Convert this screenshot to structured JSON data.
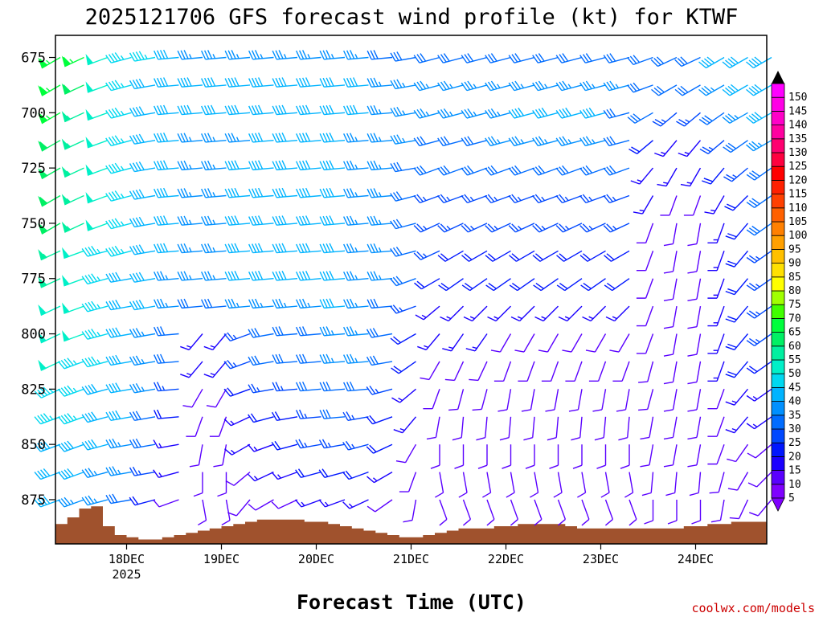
{
  "chart_data": {
    "type": "wind_barb_profile",
    "title": "2025121706 GFS forecast wind profile (kt) for KTWF",
    "xlabel": "Forecast Time (UTC)",
    "ylabel": "",
    "credit": "coolwx.com/models",
    "y_axis": {
      "unit": "mb",
      "range": [
        665,
        895
      ],
      "inverted": true,
      "ticks": [
        "675",
        "700",
        "725",
        "750",
        "775",
        "800",
        "825",
        "850",
        "875"
      ]
    },
    "x_axis": {
      "unit": "hours since 2025-12-17 06Z",
      "range": [
        0,
        180
      ],
      "ticks": [
        {
          "label": "18DEC",
          "sublabel": "2025",
          "hour": 18
        },
        {
          "label": "19DEC",
          "sublabel": "",
          "hour": 42
        },
        {
          "label": "20DEC",
          "sublabel": "",
          "hour": 66
        },
        {
          "label": "21DEC",
          "sublabel": "",
          "hour": 90
        },
        {
          "label": "22DEC",
          "sublabel": "",
          "hour": 114
        },
        {
          "label": "23DEC",
          "sublabel": "",
          "hour": 138
        },
        {
          "label": "24DEC",
          "sublabel": "",
          "hour": 162
        }
      ]
    },
    "colorbar": {
      "unit": "kt",
      "levels": [
        "5",
        "10",
        "15",
        "20",
        "25",
        "30",
        "35",
        "40",
        "45",
        "50",
        "55",
        "60",
        "65",
        "70",
        "75",
        "80",
        "85",
        "90",
        "95",
        "100",
        "105",
        "110",
        "115",
        "120",
        "125",
        "130",
        "135",
        "140",
        "145",
        "150"
      ],
      "colors": [
        "#7f00ff",
        "#5a00ff",
        "#1a00ff",
        "#0016ff",
        "#0048ff",
        "#006cff",
        "#0090ff",
        "#00b4ff",
        "#00d8f0",
        "#00f0c8",
        "#00f0a0",
        "#00f064",
        "#00ff3c",
        "#40ff00",
        "#a0ff00",
        "#ffff00",
        "#ffe000",
        "#ffc000",
        "#ffa000",
        "#ff8000",
        "#ff6000",
        "#ff4000",
        "#ff2000",
        "#ff0000",
        "#ff0040",
        "#ff0070",
        "#ff00a0",
        "#ff00c8",
        "#ff00e6",
        "#ff00ff"
      ]
    },
    "terrain_color": "#a0522d",
    "terrain_hours": [
      0,
      3,
      6,
      9,
      12,
      15,
      18,
      21,
      24,
      27,
      30,
      33,
      36,
      39,
      42,
      45,
      48,
      51,
      54,
      57,
      60,
      63,
      66,
      69,
      72,
      75,
      78,
      81,
      84,
      87,
      90,
      93,
      96,
      99,
      102,
      105,
      108,
      111,
      114,
      117,
      120,
      123,
      126,
      129,
      132,
      135,
      138,
      141,
      144,
      147,
      150,
      153,
      156,
      159,
      162,
      165,
      168,
      171,
      174,
      177,
      180
    ],
    "terrain_pressure_mb": [
      886,
      883,
      879,
      878,
      887,
      891,
      892,
      893,
      893,
      892,
      891,
      890,
      889,
      888,
      887,
      886,
      885,
      884,
      884,
      884,
      884,
      885,
      885,
      886,
      887,
      888,
      889,
      890,
      891,
      892,
      892,
      891,
      890,
      889,
      888,
      888,
      888,
      887,
      887,
      886,
      886,
      886,
      886,
      887,
      888,
      888,
      888,
      888,
      888,
      888,
      888,
      888,
      888,
      887,
      887,
      886,
      886,
      885,
      885,
      885,
      886
    ],
    "levels_mb": [
      675,
      687.5,
      700,
      712.5,
      725,
      737.5,
      750,
      762.5,
      775,
      787.5,
      800,
      812.5,
      825,
      837.5,
      850,
      862.5,
      875
    ],
    "times_hours": [
      0,
      6,
      12,
      18,
      24,
      30,
      36,
      42,
      48,
      54,
      60,
      66,
      72,
      78,
      84,
      90,
      96,
      102,
      108,
      114,
      120,
      126,
      132,
      138,
      144,
      150,
      156,
      162,
      168,
      174,
      180
    ],
    "wind_speed_kt": [
      [
        65,
        65,
        50,
        45,
        45,
        40,
        35,
        35,
        35,
        35,
        35,
        35,
        35,
        35,
        30,
        30,
        30,
        30,
        30,
        30,
        30,
        30,
        30,
        30,
        30,
        30,
        30,
        30,
        40,
        40,
        40
      ],
      [
        65,
        60,
        50,
        45,
        40,
        40,
        40,
        40,
        40,
        40,
        40,
        40,
        40,
        40,
        35,
        35,
        35,
        35,
        35,
        35,
        35,
        35,
        35,
        35,
        35,
        30,
        30,
        30,
        35,
        40,
        40
      ],
      [
        65,
        55,
        50,
        45,
        40,
        40,
        40,
        40,
        40,
        40,
        40,
        40,
        40,
        40,
        35,
        35,
        35,
        35,
        35,
        35,
        40,
        40,
        40,
        40,
        30,
        30,
        25,
        25,
        30,
        35,
        40
      ],
      [
        60,
        55,
        50,
        45,
        40,
        40,
        35,
        35,
        35,
        40,
        40,
        40,
        40,
        35,
        35,
        35,
        30,
        30,
        30,
        35,
        35,
        35,
        35,
        35,
        30,
        20,
        15,
        15,
        25,
        30,
        35
      ],
      [
        60,
        55,
        50,
        45,
        40,
        40,
        35,
        35,
        40,
        40,
        40,
        40,
        40,
        35,
        35,
        30,
        30,
        30,
        30,
        30,
        30,
        30,
        30,
        30,
        30,
        15,
        15,
        15,
        20,
        25,
        30
      ],
      [
        60,
        55,
        50,
        45,
        40,
        40,
        35,
        35,
        40,
        40,
        40,
        40,
        40,
        35,
        35,
        30,
        25,
        25,
        25,
        25,
        25,
        25,
        25,
        25,
        25,
        15,
        10,
        10,
        15,
        20,
        30
      ],
      [
        60,
        55,
        50,
        45,
        40,
        40,
        35,
        35,
        40,
        40,
        40,
        40,
        40,
        35,
        35,
        30,
        25,
        25,
        25,
        25,
        25,
        25,
        25,
        25,
        25,
        10,
        10,
        10,
        15,
        20,
        30
      ],
      [
        55,
        50,
        45,
        45,
        40,
        40,
        35,
        35,
        40,
        40,
        40,
        40,
        40,
        35,
        35,
        30,
        25,
        20,
        20,
        20,
        20,
        20,
        20,
        20,
        20,
        10,
        10,
        10,
        15,
        20,
        25
      ],
      [
        55,
        50,
        45,
        40,
        40,
        35,
        35,
        35,
        40,
        40,
        40,
        40,
        40,
        35,
        35,
        30,
        20,
        20,
        20,
        20,
        20,
        20,
        20,
        20,
        20,
        10,
        10,
        10,
        15,
        20,
        25
      ],
      [
        50,
        50,
        45,
        40,
        40,
        35,
        30,
        30,
        35,
        35,
        35,
        35,
        40,
        35,
        30,
        25,
        15,
        15,
        15,
        15,
        15,
        15,
        15,
        15,
        15,
        10,
        10,
        10,
        15,
        20,
        25
      ],
      [
        50,
        50,
        45,
        40,
        35,
        30,
        15,
        15,
        25,
        30,
        30,
        30,
        35,
        35,
        30,
        20,
        15,
        15,
        15,
        10,
        10,
        10,
        10,
        10,
        10,
        10,
        10,
        10,
        15,
        20,
        25
      ],
      [
        50,
        45,
        45,
        40,
        35,
        30,
        15,
        15,
        25,
        30,
        30,
        30,
        35,
        35,
        30,
        20,
        10,
        10,
        10,
        10,
        10,
        10,
        10,
        10,
        10,
        10,
        10,
        10,
        15,
        20,
        20
      ],
      [
        45,
        45,
        40,
        40,
        35,
        25,
        10,
        10,
        20,
        25,
        25,
        30,
        30,
        30,
        25,
        15,
        10,
        10,
        10,
        10,
        10,
        10,
        10,
        10,
        10,
        10,
        10,
        10,
        10,
        15,
        15
      ],
      [
        45,
        45,
        40,
        40,
        30,
        20,
        10,
        10,
        15,
        20,
        20,
        25,
        30,
        25,
        20,
        15,
        10,
        10,
        10,
        10,
        10,
        10,
        10,
        10,
        10,
        10,
        10,
        10,
        10,
        15,
        15
      ],
      [
        40,
        40,
        40,
        35,
        30,
        15,
        10,
        10,
        15,
        15,
        20,
        25,
        25,
        25,
        20,
        10,
        10,
        10,
        10,
        10,
        10,
        10,
        10,
        10,
        10,
        10,
        10,
        10,
        10,
        10,
        10
      ],
      [
        40,
        40,
        35,
        35,
        25,
        15,
        10,
        10,
        10,
        15,
        15,
        20,
        20,
        20,
        15,
        10,
        10,
        10,
        10,
        10,
        10,
        10,
        10,
        10,
        10,
        10,
        10,
        10,
        10,
        10,
        10
      ],
      [
        40,
        35,
        35,
        30,
        20,
        10,
        10,
        10,
        10,
        10,
        10,
        15,
        15,
        15,
        10,
        10,
        10,
        10,
        10,
        10,
        10,
        10,
        10,
        10,
        10,
        10,
        10,
        10,
        10,
        10,
        10
      ]
    ],
    "wind_dir_deg": [
      [
        240,
        245,
        250,
        255,
        260,
        265,
        265,
        265,
        265,
        265,
        265,
        265,
        265,
        265,
        265,
        260,
        255,
        255,
        255,
        255,
        255,
        255,
        255,
        255,
        255,
        250,
        245,
        245,
        240,
        240,
        240
      ],
      [
        240,
        245,
        250,
        255,
        260,
        265,
        265,
        265,
        265,
        265,
        265,
        265,
        265,
        265,
        265,
        260,
        255,
        255,
        255,
        255,
        255,
        255,
        255,
        255,
        255,
        250,
        240,
        240,
        240,
        240,
        240
      ],
      [
        240,
        245,
        250,
        255,
        260,
        265,
        265,
        265,
        265,
        265,
        265,
        265,
        265,
        265,
        265,
        260,
        255,
        255,
        255,
        255,
        255,
        255,
        255,
        255,
        255,
        240,
        230,
        230,
        235,
        240,
        240
      ],
      [
        240,
        245,
        250,
        255,
        260,
        265,
        265,
        265,
        265,
        265,
        265,
        265,
        265,
        265,
        265,
        260,
        255,
        255,
        255,
        255,
        255,
        255,
        255,
        255,
        255,
        230,
        220,
        220,
        230,
        235,
        240
      ],
      [
        240,
        245,
        250,
        255,
        260,
        265,
        265,
        265,
        265,
        265,
        265,
        265,
        265,
        265,
        265,
        260,
        250,
        250,
        250,
        250,
        250,
        250,
        250,
        250,
        250,
        220,
        210,
        210,
        220,
        230,
        235
      ],
      [
        240,
        245,
        250,
        255,
        260,
        265,
        265,
        265,
        265,
        265,
        265,
        265,
        265,
        265,
        265,
        255,
        250,
        250,
        250,
        250,
        250,
        250,
        250,
        250,
        250,
        210,
        200,
        200,
        210,
        225,
        235
      ],
      [
        240,
        245,
        250,
        255,
        260,
        265,
        265,
        265,
        265,
        265,
        265,
        265,
        265,
        265,
        265,
        255,
        245,
        245,
        245,
        245,
        245,
        245,
        245,
        245,
        245,
        200,
        190,
        190,
        200,
        220,
        235
      ],
      [
        245,
        250,
        255,
        255,
        260,
        265,
        265,
        265,
        265,
        265,
        265,
        265,
        265,
        265,
        265,
        255,
        245,
        240,
        240,
        240,
        240,
        240,
        240,
        240,
        240,
        200,
        190,
        190,
        200,
        220,
        235
      ],
      [
        245,
        250,
        255,
        260,
        260,
        265,
        265,
        265,
        265,
        265,
        265,
        265,
        265,
        265,
        265,
        250,
        240,
        235,
        235,
        235,
        235,
        235,
        235,
        235,
        235,
        200,
        190,
        190,
        200,
        220,
        235
      ],
      [
        245,
        250,
        255,
        260,
        260,
        265,
        265,
        265,
        265,
        265,
        265,
        265,
        265,
        265,
        265,
        250,
        230,
        225,
        225,
        225,
        225,
        225,
        225,
        225,
        225,
        200,
        190,
        190,
        200,
        220,
        235
      ],
      [
        245,
        250,
        255,
        260,
        260,
        265,
        220,
        220,
        250,
        260,
        265,
        265,
        265,
        265,
        260,
        240,
        220,
        215,
        215,
        210,
        210,
        210,
        210,
        210,
        210,
        200,
        190,
        190,
        200,
        220,
        235
      ],
      [
        245,
        250,
        255,
        260,
        260,
        265,
        220,
        220,
        250,
        260,
        265,
        265,
        265,
        265,
        260,
        235,
        210,
        205,
        205,
        200,
        200,
        200,
        200,
        200,
        200,
        195,
        190,
        190,
        200,
        220,
        235
      ],
      [
        245,
        250,
        255,
        260,
        260,
        265,
        210,
        210,
        250,
        260,
        265,
        265,
        265,
        265,
        255,
        230,
        200,
        195,
        195,
        190,
        190,
        190,
        190,
        190,
        190,
        195,
        190,
        190,
        200,
        220,
        235
      ],
      [
        250,
        250,
        255,
        260,
        260,
        265,
        200,
        200,
        245,
        255,
        260,
        265,
        265,
        260,
        250,
        220,
        190,
        185,
        185,
        185,
        185,
        185,
        185,
        185,
        185,
        190,
        190,
        190,
        200,
        220,
        235
      ],
      [
        250,
        250,
        255,
        260,
        260,
        260,
        190,
        190,
        240,
        250,
        255,
        260,
        260,
        255,
        245,
        210,
        180,
        180,
        180,
        180,
        180,
        180,
        180,
        180,
        180,
        190,
        190,
        190,
        200,
        215,
        230
      ],
      [
        250,
        250,
        255,
        260,
        260,
        255,
        180,
        180,
        230,
        245,
        250,
        255,
        255,
        250,
        240,
        200,
        170,
        170,
        170,
        170,
        170,
        170,
        170,
        170,
        170,
        185,
        185,
        185,
        195,
        210,
        225
      ],
      [
        250,
        250,
        255,
        260,
        255,
        250,
        170,
        170,
        220,
        240,
        245,
        250,
        250,
        245,
        235,
        190,
        160,
        160,
        160,
        160,
        160,
        160,
        160,
        160,
        160,
        180,
        180,
        180,
        190,
        205,
        220
      ]
    ]
  }
}
